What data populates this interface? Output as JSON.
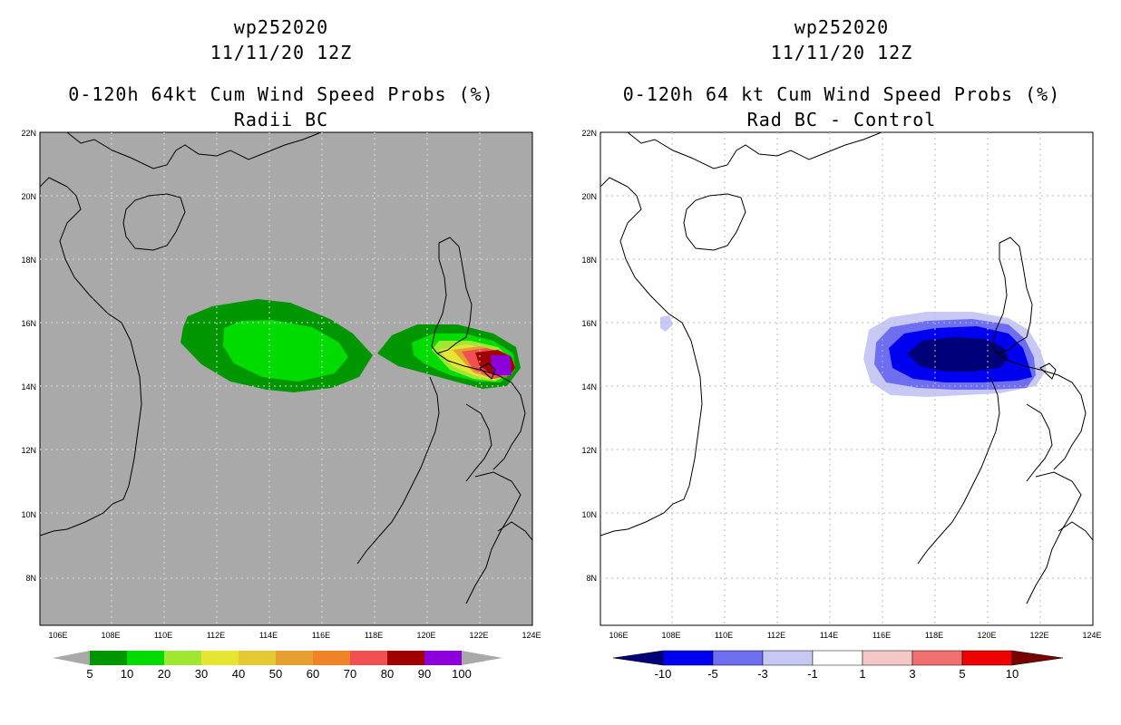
{
  "left_panel": {
    "title_line1": "wp252020",
    "title_line2": "11/11/20 12Z",
    "subtitle_line1": "0-120h 64kt Cum Wind Speed Probs (%)",
    "subtitle_line2": "Radii BC",
    "background_color": "#a9a9a9",
    "lat_ticks": [
      "22N",
      "20N",
      "18N",
      "16N",
      "14N",
      "12N",
      "10N",
      "8N"
    ],
    "lon_ticks": [
      "106E",
      "108E",
      "110E",
      "112E",
      "114E",
      "116E",
      "118E",
      "120E",
      "122E",
      "124E"
    ],
    "colorbar": {
      "colors": [
        "#009600",
        "#00dc00",
        "#a0e632",
        "#e6e632",
        "#e6c832",
        "#e6a032",
        "#f08228",
        "#f05050",
        "#a00000",
        "#8c00dc"
      ],
      "labels": [
        "5",
        "10",
        "20",
        "30",
        "40",
        "50",
        "60",
        "70",
        "80",
        "90",
        "100"
      ],
      "end_color": "#a9a9a9"
    }
  },
  "right_panel": {
    "title_line1": "wp252020",
    "title_line2": "11/11/20 12Z",
    "subtitle_line1": "0-120h 64 kt Cum Wind Speed Probs (%)",
    "subtitle_line2": "Rad BC - Control",
    "background_color": "#ffffff",
    "lat_ticks": [
      "22N",
      "20N",
      "18N",
      "16N",
      "14N",
      "12N",
      "10N",
      "8N"
    ],
    "lon_ticks": [
      "106E",
      "108E",
      "110E",
      "112E",
      "114E",
      "116E",
      "118E",
      "120E",
      "122E",
      "124E"
    ],
    "colorbar": {
      "colors": [
        "#0000f0",
        "#6e6ef0",
        "#c8c8f5",
        "#ffffff",
        "#f5c8c8",
        "#f07070",
        "#f00000"
      ],
      "labels": [
        "-10",
        "-5",
        "-3",
        "-1",
        "1",
        "3",
        "5",
        "10"
      ],
      "low_end_color": "#000078",
      "high_end_color": "#780000"
    }
  }
}
